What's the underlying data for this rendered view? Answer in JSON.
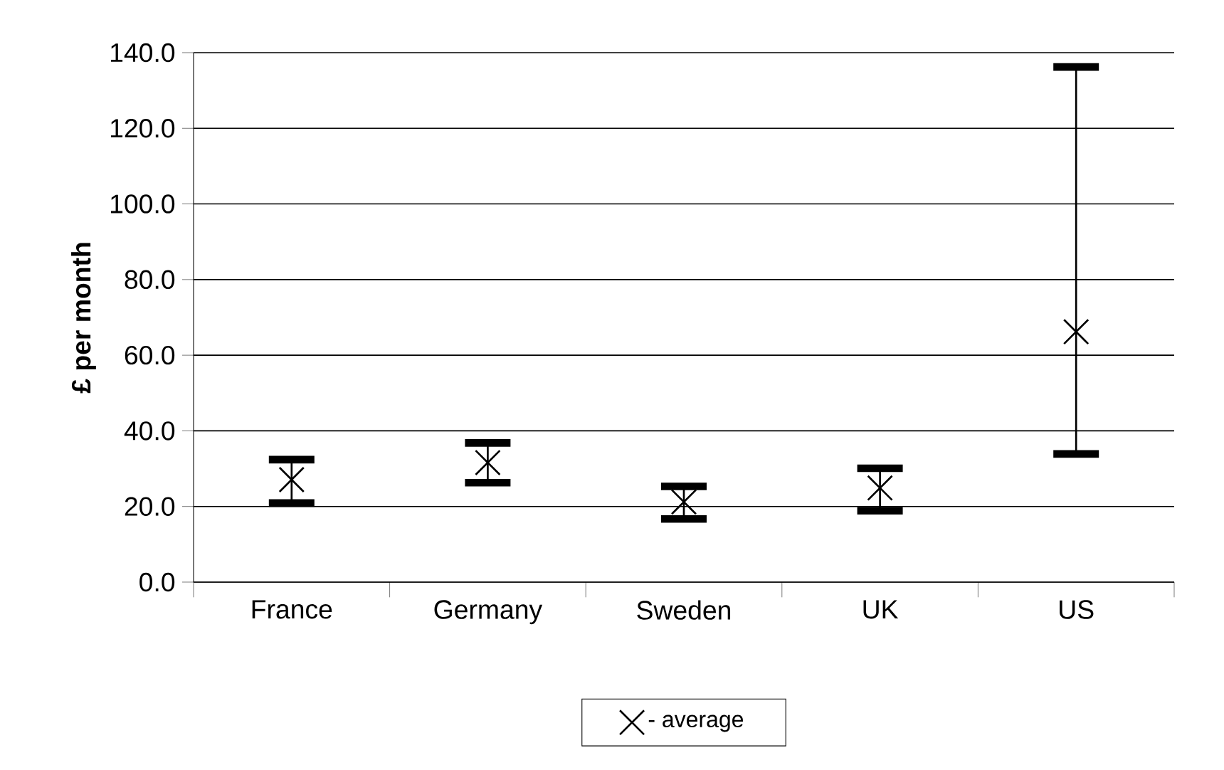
{
  "chart_data": {
    "type": "scatter",
    "ylabel": "£ per month",
    "categories": [
      "France",
      "Germany",
      "Sweden",
      "UK",
      "US"
    ],
    "series": [
      {
        "name": "- average",
        "color": "#000000",
        "values": [
          27.1,
          31.6,
          21.2,
          24.9,
          66.2
        ],
        "errors": [
          [
            20.9,
            32.4
          ],
          [
            26.3,
            36.8
          ],
          [
            16.7,
            25.3
          ],
          [
            18.9,
            30.1
          ],
          [
            33.9,
            136.2
          ]
        ]
      }
    ],
    "ylim": [
      0,
      140
    ],
    "yticks": [
      {
        "value": 0,
        "label": "0.0"
      },
      {
        "value": 20,
        "label": "20.0"
      },
      {
        "value": 40,
        "label": "40.0"
      },
      {
        "value": 60,
        "label": "60.0"
      },
      {
        "value": 80,
        "label": "80.0"
      },
      {
        "value": 100,
        "label": "100.0"
      },
      {
        "value": 120,
        "label": "120.0"
      },
      {
        "value": 140,
        "label": "140.0"
      }
    ],
    "grid": "y",
    "legend": "bottom",
    "marker": "cross"
  }
}
